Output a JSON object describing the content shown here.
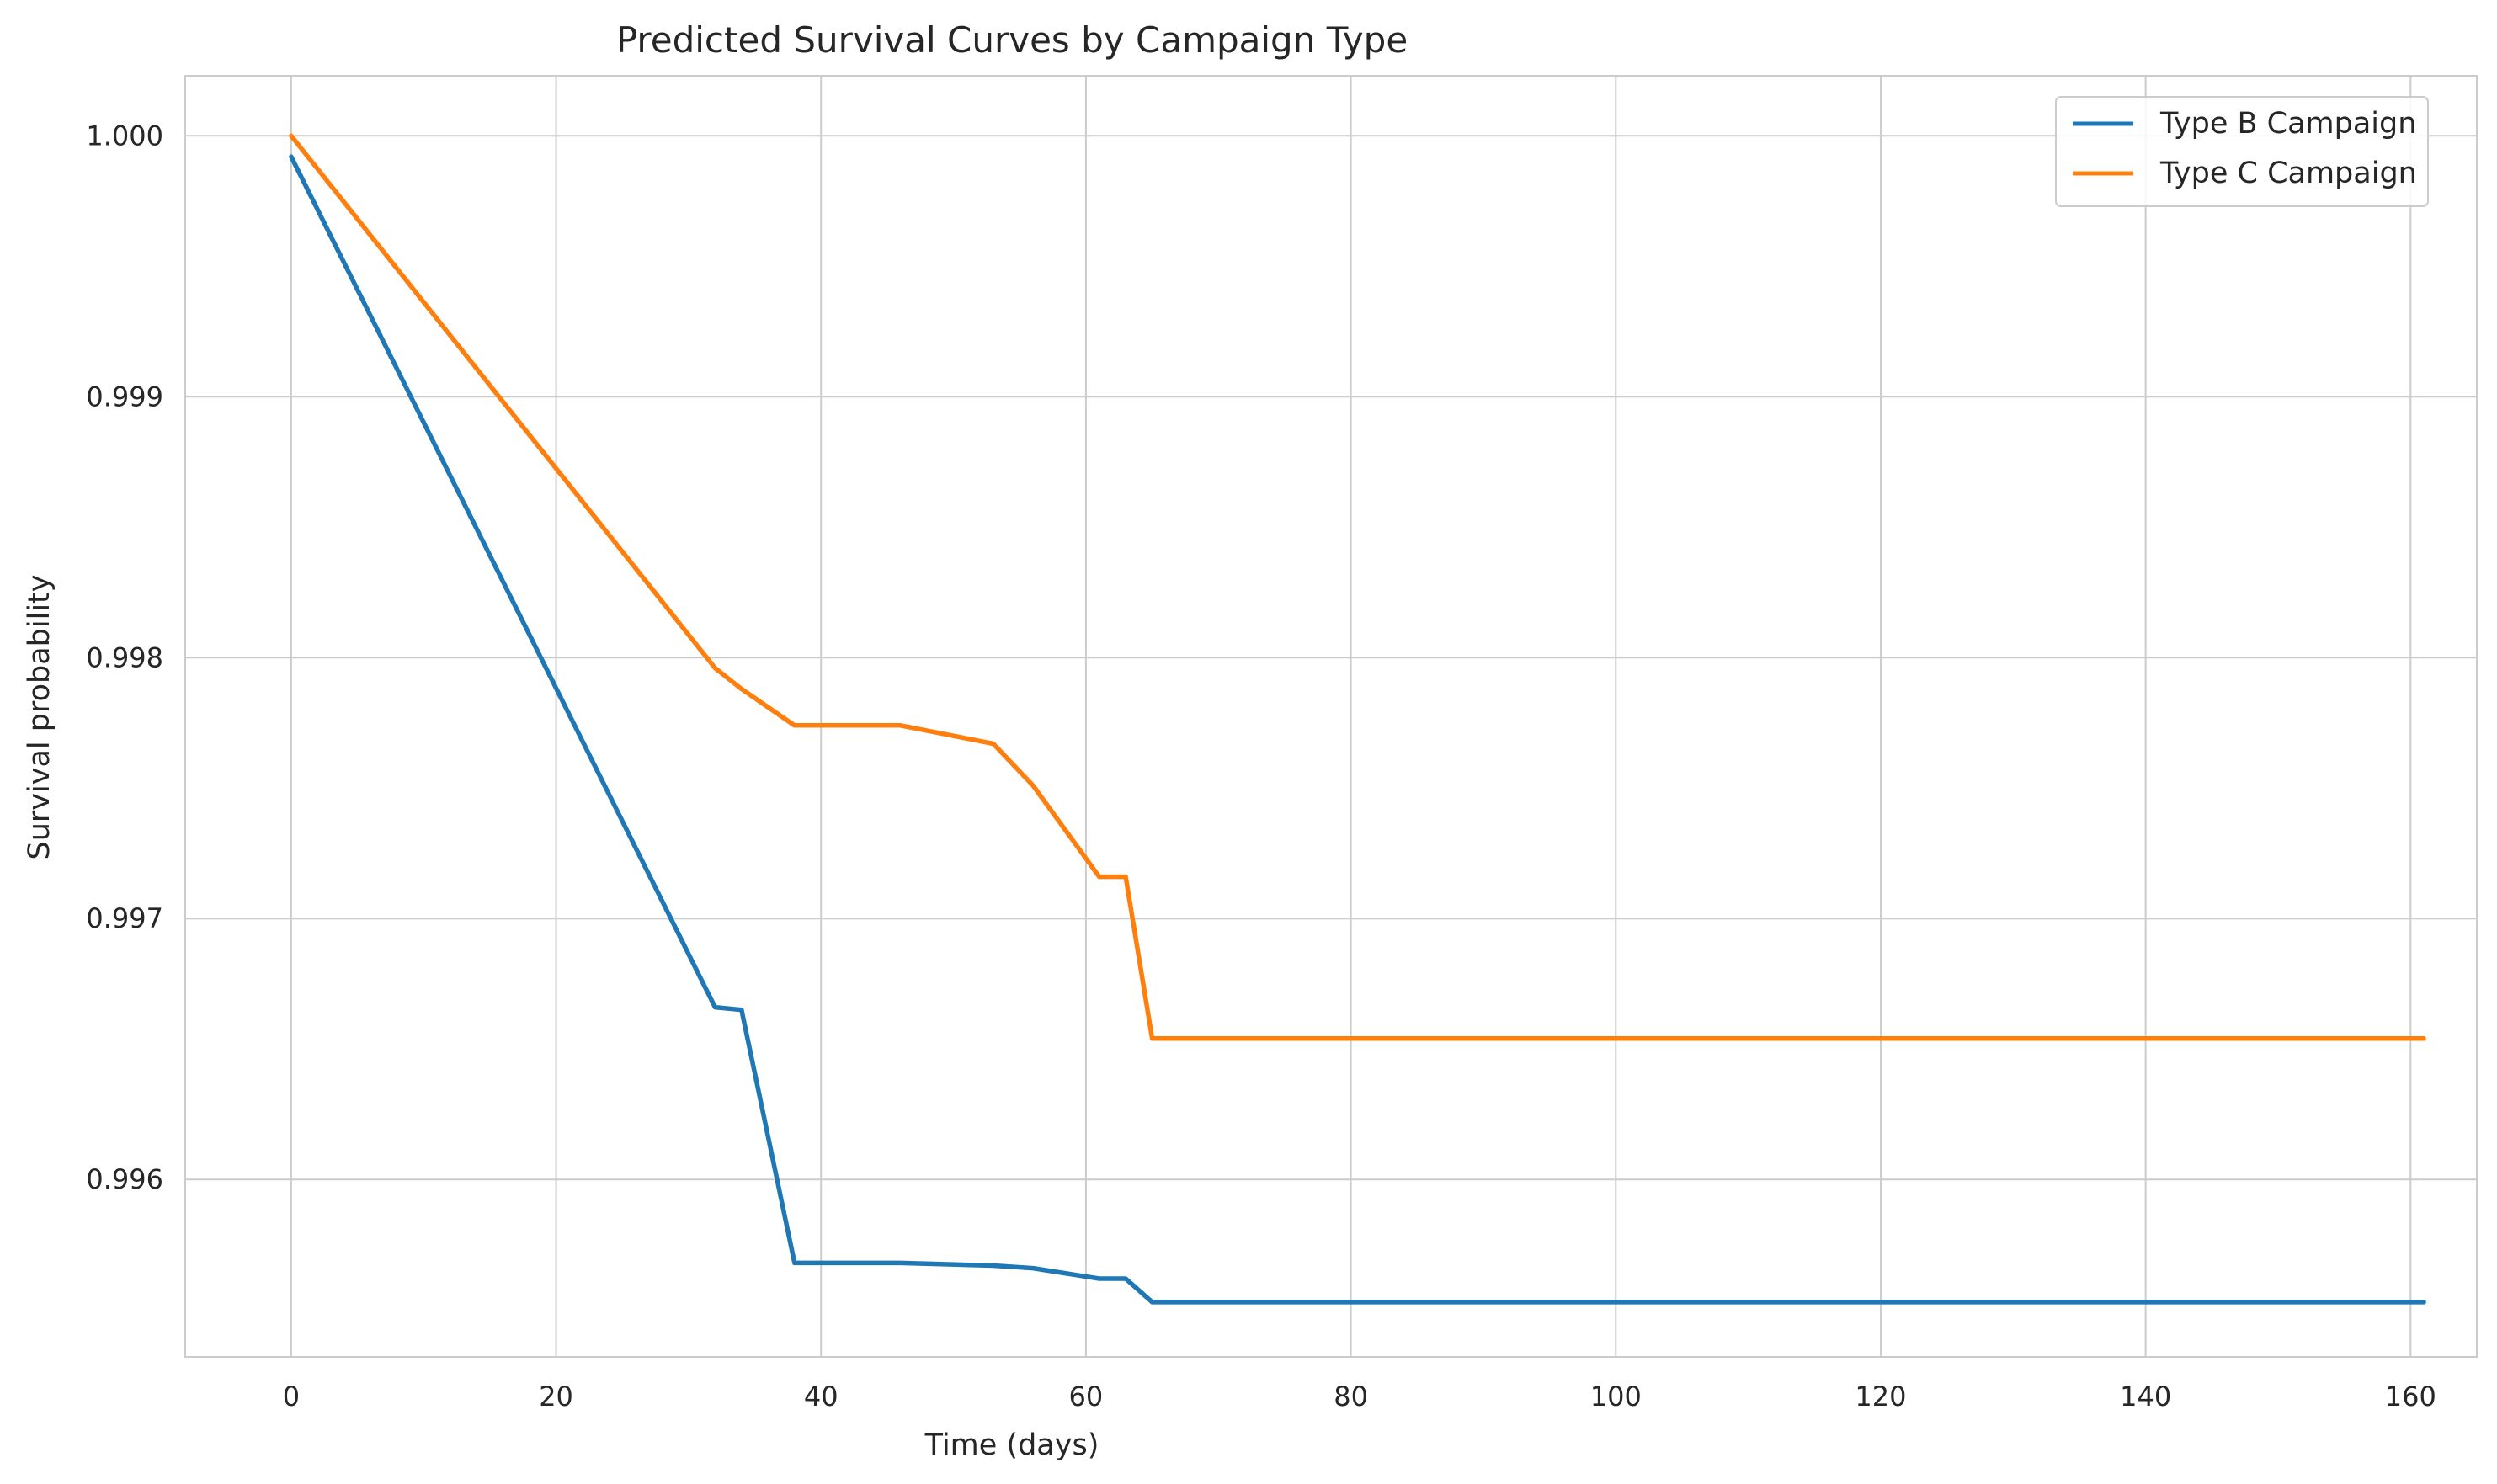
{
  "chart_data": {
    "type": "line",
    "title": "Predicted Survival Curves by Campaign Type",
    "xlabel": "Time (days)",
    "ylabel": "Survival probability",
    "xlim": [
      -8,
      165
    ],
    "ylim": [
      0.99532,
      1.00023
    ],
    "xticks": [
      0,
      20,
      40,
      60,
      80,
      100,
      120,
      140,
      160
    ],
    "yticks": [
      0.996,
      0.997,
      0.998,
      0.999,
      1.0
    ],
    "ytick_labels": [
      "0.996",
      "0.997",
      "0.998",
      "0.999",
      "1.000"
    ],
    "grid": true,
    "legend_position": "top-right",
    "series": [
      {
        "name": "Type B Campaign",
        "color": "#1f77b4",
        "points": [
          [
            0,
            0.99992
          ],
          [
            32,
            0.99666
          ],
          [
            34,
            0.99665
          ],
          [
            38,
            0.99568
          ],
          [
            46,
            0.99568
          ],
          [
            53,
            0.99567
          ],
          [
            56,
            0.99566
          ],
          [
            61,
            0.99562
          ],
          [
            63,
            0.99562
          ],
          [
            65,
            0.99553
          ],
          [
            161,
            0.99553
          ]
        ]
      },
      {
        "name": "Type C Campaign",
        "color": "#ff7f0e",
        "points": [
          [
            0,
            1.0
          ],
          [
            32,
            0.99796
          ],
          [
            34,
            0.99788
          ],
          [
            38,
            0.99774
          ],
          [
            46,
            0.99774
          ],
          [
            53,
            0.99767
          ],
          [
            56,
            0.99751
          ],
          [
            61,
            0.99716
          ],
          [
            63,
            0.99716
          ],
          [
            65,
            0.99654
          ],
          [
            161,
            0.99654
          ]
        ]
      }
    ]
  }
}
